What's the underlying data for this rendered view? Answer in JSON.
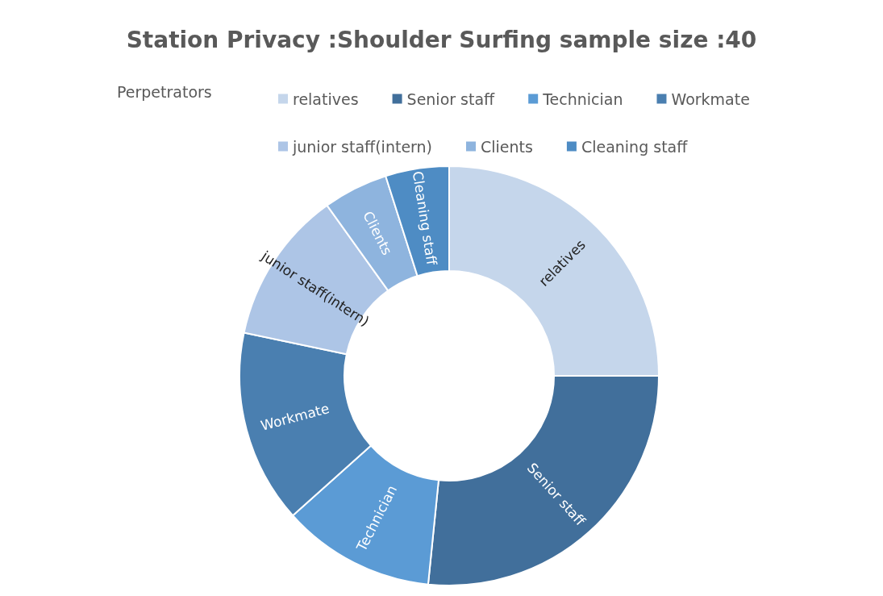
{
  "chart_data": {
    "type": "donut",
    "title": "Station Privacy :Shoulder Surfing sample size :40",
    "legend_title": "Perpetrators",
    "legend": "top",
    "categories": [
      "relatives",
      "Senior staff",
      "Technician",
      "Workmate",
      "junior staff(intern)",
      "Clients",
      "Cleaning staff"
    ],
    "values": [
      25,
      26.6,
      11.8,
      14.9,
      11.8,
      5,
      4.9
    ],
    "colors": [
      "#c5d6eb",
      "#416f9b",
      "#5b9bd5",
      "#4a7fb0",
      "#adc5e6",
      "#8eb4de",
      "#4e8cc4"
    ]
  }
}
